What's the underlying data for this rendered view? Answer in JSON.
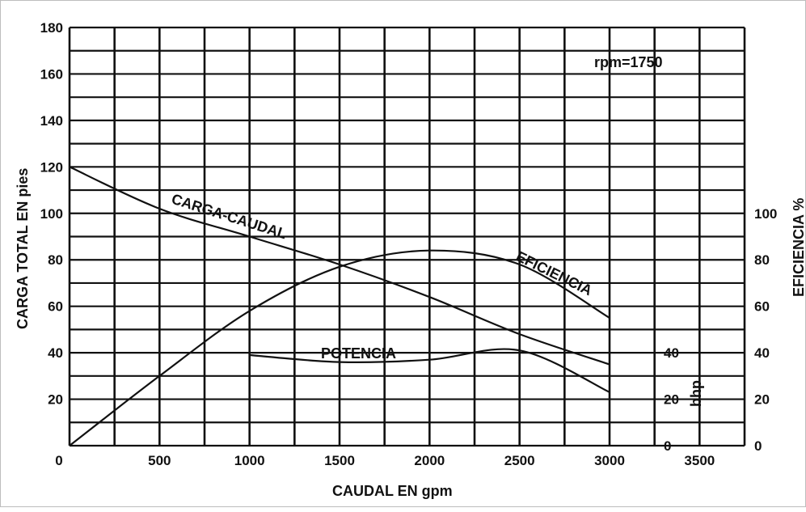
{
  "chart_data": {
    "type": "line",
    "annotation": "rpm=1750",
    "xlabel": "CAUDAL EN gpm",
    "ylabel_left": "CARGA TOTAL EN pies",
    "ylabel_right": "EFICIENCIA %",
    "ylabel_bhp": "bhp",
    "xlim": [
      0,
      3750
    ],
    "ylim_left": [
      0,
      180
    ],
    "x_ticks": [
      "0",
      "500",
      "1000",
      "1500",
      "2000",
      "2500",
      "3000",
      "3500"
    ],
    "y_left_ticks": [
      "20",
      "40",
      "60",
      "80",
      "100",
      "120",
      "140",
      "160",
      "180"
    ],
    "y_right_ticks": [
      "0",
      "20",
      "40",
      "60",
      "80",
      "100"
    ],
    "bhp_ticks": [
      "0",
      "20",
      "40"
    ],
    "grid": true,
    "series": [
      {
        "name": "CARGA-CAUDAL",
        "x": [
          0,
          500,
          1000,
          1500,
          2000,
          2500,
          3000
        ],
        "y": [
          120,
          102,
          90,
          78,
          64,
          48,
          35
        ]
      },
      {
        "name": "EFICIENCIA",
        "x": [
          0,
          500,
          1000,
          1500,
          2000,
          2500,
          3000
        ],
        "y": [
          0,
          30,
          58,
          77,
          84,
          78,
          55
        ]
      },
      {
        "name": "POTENCIA",
        "x": [
          1000,
          1500,
          2000,
          2500,
          3000
        ],
        "y": [
          39,
          36,
          37,
          41,
          23
        ]
      }
    ]
  }
}
